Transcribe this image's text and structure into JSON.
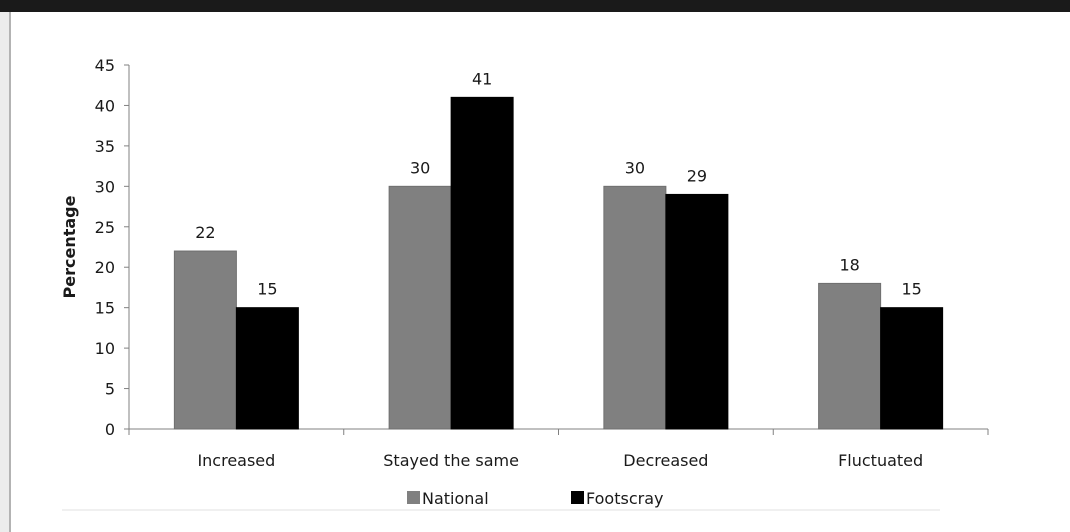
{
  "chart_data": {
    "type": "bar",
    "title": "",
    "xlabel": "",
    "ylabel": "Percentage",
    "ylim": [
      0,
      45
    ],
    "y_ticks": [
      0,
      5,
      10,
      15,
      20,
      25,
      30,
      35,
      40,
      45
    ],
    "categories": [
      "Increased",
      "Stayed the same",
      "Decreased",
      "Fluctuated"
    ],
    "series": [
      {
        "name": "National",
        "values": [
          22,
          30,
          30,
          18
        ],
        "color": "#808080"
      },
      {
        "name": "Footscray",
        "values": [
          15,
          41,
          29,
          15
        ],
        "color": "#000000"
      }
    ],
    "data_labels": true,
    "grid": false,
    "legend_position": "bottom"
  }
}
